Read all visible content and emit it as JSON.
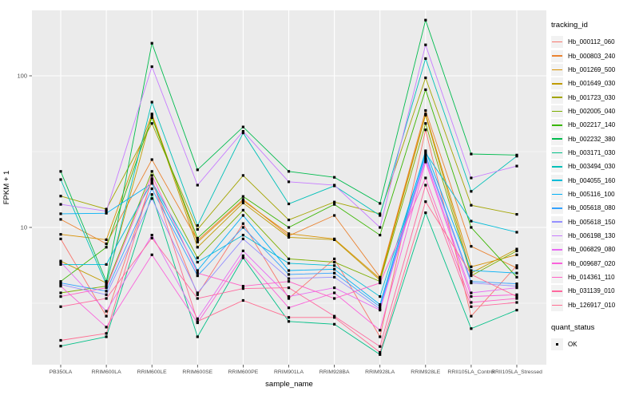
{
  "chart_data": {
    "type": "line",
    "xlabel": "sample_name",
    "ylabel": "FPKM + 1",
    "y_scale": "log10",
    "y_ticks": [
      10,
      100
    ],
    "ylim": [
      1.26,
      270
    ],
    "grid": "on",
    "panel_color": "#EBEBEB",
    "grid_color": "#FFFFFF",
    "tick_label_color": "#4D4D4D",
    "point_shape": "filled-square",
    "point_color": "#000000",
    "legend": {
      "position": "right",
      "tracking_title": "tracking_id",
      "quant_title": "quant_status",
      "quant_value": "OK"
    },
    "categories": [
      "PB350LA",
      "RRIM600LA",
      "RRIM600LE",
      "RRIM600SE",
      "RRIM600PE",
      "RRIM901LA",
      "RRIM928BA",
      "RRIM928LA",
      "RRIM928LE",
      "RRII105LA_Control",
      "RRII105LA_Stressed"
    ],
    "series": [
      {
        "name": "Hb_000112_060",
        "color": "#F8766D",
        "values": [
          8.4,
          2.6,
          20.5,
          3.6,
          10.6,
          3.4,
          6.2,
          1.9,
          44,
          2.6,
          5.6
        ]
      },
      {
        "name": "Hb_000803_240",
        "color": "#EA8331",
        "values": [
          11.3,
          7.8,
          28,
          8.2,
          15.3,
          8.8,
          12.0,
          4.7,
          59,
          7.5,
          5.4
        ]
      },
      {
        "name": "Hb_001269_500",
        "color": "#D89000",
        "values": [
          9.0,
          8.3,
          56,
          8.0,
          15.0,
          9.1,
          8.4,
          4.6,
          56,
          5.5,
          6.6
        ]
      },
      {
        "name": "Hb_001649_030",
        "color": "#C09B00",
        "values": [
          6.0,
          4.3,
          55,
          7.4,
          14.5,
          8.6,
          8.3,
          4.5,
          55,
          5.0,
          7.2
        ]
      },
      {
        "name": "Hb_001723_030",
        "color": "#A3A500",
        "values": [
          16.1,
          13.2,
          48.5,
          9.7,
          22,
          11.2,
          14.7,
          12.3,
          97,
          14.0,
          12.2
        ]
      },
      {
        "name": "Hb_002005_040",
        "color": "#7CAE00",
        "values": [
          3.7,
          4.1,
          23.4,
          6.3,
          13.0,
          6.2,
          5.9,
          4.4,
          48.5,
          4.8,
          7.0
        ]
      },
      {
        "name": "Hb_002217_140",
        "color": "#39B600",
        "values": [
          4.4,
          7.4,
          53,
          8.5,
          16,
          10.0,
          14.2,
          8.9,
          81,
          10.0,
          4.7
        ]
      },
      {
        "name": "Hb_002232_380",
        "color": "#00BB4E",
        "values": [
          23.4,
          4.4,
          164,
          24,
          46,
          23.4,
          21.4,
          14.4,
          233,
          30.5,
          30
        ]
      },
      {
        "name": "Hb_003171_030",
        "color": "#00C087",
        "values": [
          1.65,
          1.9,
          16.5,
          1.9,
          6.3,
          2.4,
          2.3,
          1.45,
          12.5,
          2.15,
          2.85
        ]
      },
      {
        "name": "Hb_003494_030",
        "color": "#00C0B8",
        "values": [
          20.7,
          4.2,
          67,
          10.3,
          42,
          14.3,
          18.8,
          12.0,
          130,
          17.3,
          29.5
        ]
      },
      {
        "name": "Hb_004055_160",
        "color": "#00BCD8",
        "values": [
          5.7,
          5.7,
          20,
          5.9,
          8.9,
          5.8,
          5.6,
          3.5,
          31,
          11.0,
          9.3
        ]
      },
      {
        "name": "Hb_005116_100",
        "color": "#00B0F6",
        "values": [
          12.3,
          12.4,
          19.5,
          5.2,
          12.0,
          5.2,
          5.3,
          3.1,
          32,
          5.2,
          5.0
        ]
      },
      {
        "name": "Hb_005618_080",
        "color": "#35A2FF",
        "values": [
          4.3,
          3.8,
          18,
          4.8,
          10.0,
          4.9,
          5.0,
          3.0,
          30,
          4.4,
          4.25
        ]
      },
      {
        "name": "Hb_005618_150",
        "color": "#9590FF",
        "values": [
          4.2,
          3.6,
          15.5,
          3.7,
          8.4,
          4.6,
          4.7,
          2.9,
          29,
          4.3,
          4.1
        ]
      },
      {
        "name": "Hb_006198_130",
        "color": "#C77CFF",
        "values": [
          14.2,
          12.8,
          115,
          19,
          43,
          20,
          19,
          10.0,
          160,
          21.2,
          25.4
        ]
      },
      {
        "name": "Hb_006829_080",
        "color": "#E76BF3",
        "values": [
          5.9,
          2.8,
          8.9,
          2.5,
          7.0,
          3.5,
          4.0,
          2.85,
          28,
          3.7,
          4.0
        ]
      },
      {
        "name": "Hb_009687_020",
        "color": "#FA62DB",
        "values": [
          4.1,
          2.2,
          6.6,
          2.35,
          6.5,
          2.95,
          3.7,
          2.1,
          27,
          3.5,
          3.6
        ]
      },
      {
        "name": "Hb_014361_110",
        "color": "#FF61C7",
        "values": [
          3.5,
          4.0,
          22,
          5.0,
          4.1,
          4.4,
          3.4,
          4.3,
          21.2,
          3.2,
          3.4
        ]
      },
      {
        "name": "Hb_031139_010",
        "color": "#FF689E",
        "values": [
          3.0,
          3.4,
          8.5,
          3.4,
          3.95,
          4.0,
          2.6,
          1.64,
          19,
          3.0,
          3.2
        ]
      },
      {
        "name": "Hb_126917_010",
        "color": "#FF6C91",
        "values": [
          1.8,
          2.0,
          21,
          2.4,
          3.3,
          2.55,
          2.55,
          1.5,
          14.8,
          4.9,
          3.5
        ]
      }
    ]
  }
}
